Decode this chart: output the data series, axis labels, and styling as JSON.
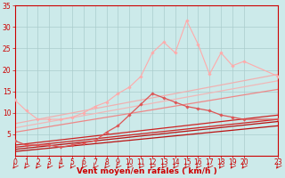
{
  "background_color": "#cceaea",
  "grid_color": "#aacccc",
  "xlabel": "Vent moyen/en rafales ( km/h )",
  "xlabel_color": "#cc0000",
  "xlabel_fontsize": 6.5,
  "tick_color": "#cc0000",
  "tick_fontsize": 5.5,
  "xlim": [
    0,
    23
  ],
  "ylim": [
    0,
    35
  ],
  "yticks": [
    5,
    10,
    15,
    20,
    25,
    30,
    35
  ],
  "lines": [
    {
      "x": [
        0,
        23
      ],
      "y": [
        7.5,
        19.0
      ],
      "color": "#f0b0b0",
      "lw": 0.9,
      "marker": null,
      "ms": 0
    },
    {
      "x": [
        0,
        23
      ],
      "y": [
        6.5,
        17.5
      ],
      "color": "#f0b8b8",
      "lw": 0.9,
      "marker": null,
      "ms": 0
    },
    {
      "x": [
        0,
        1,
        2,
        3,
        4,
        5,
        6,
        7,
        8,
        9,
        10,
        11,
        12,
        13,
        14,
        15,
        16,
        17,
        18,
        19,
        20,
        23
      ],
      "y": [
        13.0,
        10.5,
        8.5,
        8.5,
        8.5,
        9.0,
        10.0,
        11.5,
        12.5,
        14.5,
        16.0,
        18.5,
        24.0,
        26.5,
        24.0,
        31.5,
        26.0,
        19.0,
        24.0,
        21.0,
        22.0,
        18.5
      ],
      "color": "#ffaaaa",
      "lw": 0.8,
      "marker": "D",
      "ms": 1.8
    },
    {
      "x": [
        0,
        23
      ],
      "y": [
        5.5,
        15.5
      ],
      "color": "#ee8888",
      "lw": 0.9,
      "marker": null,
      "ms": 0
    },
    {
      "x": [
        0,
        1,
        2,
        3,
        4,
        5,
        6,
        7,
        8,
        9,
        10,
        11,
        12,
        13,
        14,
        15,
        16,
        17,
        18,
        19,
        20,
        23
      ],
      "y": [
        3.5,
        2.5,
        2.5,
        2.5,
        2.0,
        2.5,
        3.0,
        3.5,
        5.5,
        7.0,
        9.5,
        12.0,
        14.5,
        13.5,
        12.5,
        11.5,
        11.0,
        10.5,
        9.5,
        9.0,
        8.5,
        8.5
      ],
      "color": "#dd5555",
      "lw": 0.9,
      "marker": "D",
      "ms": 1.8
    },
    {
      "x": [
        0,
        23
      ],
      "y": [
        2.5,
        9.5
      ],
      "color": "#cc2222",
      "lw": 0.9,
      "marker": null,
      "ms": 0
    },
    {
      "x": [
        0,
        23
      ],
      "y": [
        2.0,
        8.5
      ],
      "color": "#cc2222",
      "lw": 0.9,
      "marker": null,
      "ms": 0
    },
    {
      "x": [
        0,
        23
      ],
      "y": [
        1.5,
        8.0
      ],
      "color": "#bb1111",
      "lw": 0.9,
      "marker": null,
      "ms": 0
    },
    {
      "x": [
        0,
        23
      ],
      "y": [
        1.0,
        7.0
      ],
      "color": "#bb1111",
      "lw": 0.9,
      "marker": null,
      "ms": 0
    }
  ]
}
